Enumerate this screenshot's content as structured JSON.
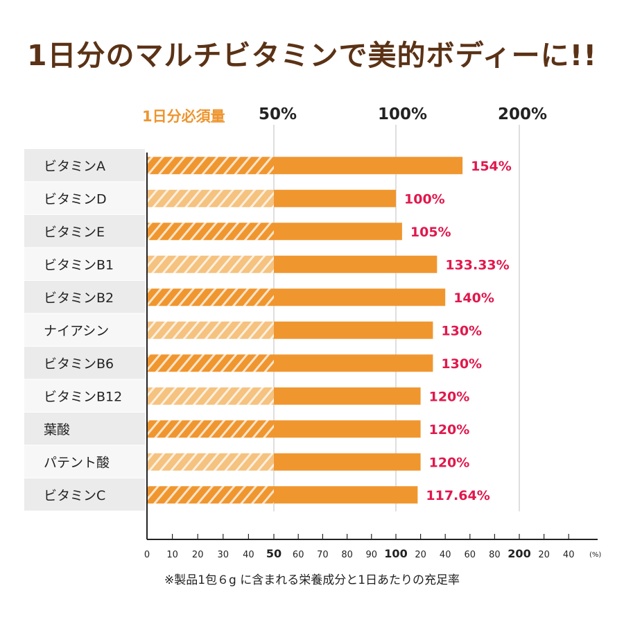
{
  "title": "1日分のマルチビタミンで美的ボディーに!!",
  "header": {
    "required_label": "1日分必須量",
    "mark_50": "50%",
    "mark_100": "100%",
    "mark_200": "200%"
  },
  "note": "※製品1包６g に含まれる栄養成分と1日あたりの充足率",
  "colors": {
    "bar": "#f0962f",
    "bar_hatch_light": "#f5c27f",
    "value_label": "#e0184c",
    "title": "#5b3216",
    "category_bg_dark": "#ebebeb",
    "category_bg_light": "#f7f7f7"
  },
  "chart_data": {
    "type": "bar",
    "orientation": "horizontal",
    "categories": [
      "ビタミンA",
      "ビタミンD",
      "ビタミンE",
      "ビタミンB1",
      "ビタミンB2",
      "ナイアシン",
      "ビタミンB6",
      "ビタミンB12",
      "葉酸",
      "パテント酸",
      "ビタミンC"
    ],
    "values": [
      154,
      100,
      105,
      133.33,
      140,
      130,
      130,
      120,
      120,
      120,
      117.64
    ],
    "value_labels": [
      "154%",
      "100%",
      "105%",
      "133.33%",
      "140%",
      "130%",
      "130%",
      "120%",
      "120%",
      "120%",
      "117.64%"
    ],
    "x_axis": {
      "scale": "piecewise: 0–50 and 50–100 linear, 100–200 compressed to same width as 50–100",
      "ticks": [
        "0",
        "10",
        "20",
        "30",
        "40",
        "50",
        "60",
        "70",
        "80",
        "90",
        "100",
        "20",
        "40",
        "60",
        "80",
        "200",
        "20",
        "40"
      ],
      "bold_ticks": [
        "50",
        "100",
        "200"
      ],
      "unit_label": "(%)"
    },
    "hatched_range": [
      0,
      50
    ],
    "grid": "vertical lines at 50, 100, 200"
  }
}
